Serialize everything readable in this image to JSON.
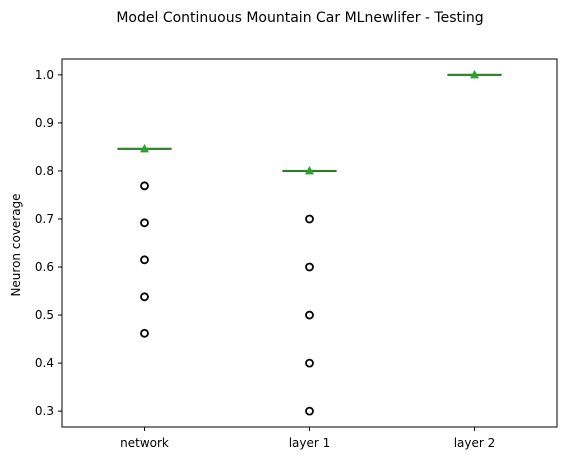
{
  "chart_data": {
    "type": "box",
    "title": "Model Continuous Mountain Car MLnewlifer - Testing",
    "xlabel": "",
    "ylabel": "Neuron coverage",
    "ylim": [
      0.267,
      1.033
    ],
    "yticks": [
      0.3,
      0.4,
      0.5,
      0.6,
      0.7,
      0.8,
      0.9,
      1.0
    ],
    "categories": [
      "network",
      "layer 1",
      "layer 2"
    ],
    "boxes": [
      {
        "category": "network",
        "median": 0.846,
        "mean": 0.846,
        "q1": 0.846,
        "q3": 0.846,
        "whisker_low": 0.846,
        "whisker_high": 0.846,
        "outliers": [
          0.769,
          0.692,
          0.615,
          0.538,
          0.462
        ]
      },
      {
        "category": "layer 1",
        "median": 0.8,
        "mean": 0.8,
        "q1": 0.8,
        "q3": 0.8,
        "whisker_low": 0.8,
        "whisker_high": 0.8,
        "outliers": [
          0.7,
          0.6,
          0.5,
          0.4,
          0.3
        ]
      },
      {
        "category": "layer 2",
        "median": 1.0,
        "mean": 1.0,
        "q1": 1.0,
        "q3": 1.0,
        "whisker_low": 1.0,
        "whisker_high": 1.0,
        "outliers": []
      }
    ],
    "colors": {
      "median": "#2ca02c",
      "mean_marker": "#2ca02c",
      "box": "#000000",
      "outlier": "#000000"
    },
    "grid": false,
    "legend": "none"
  }
}
